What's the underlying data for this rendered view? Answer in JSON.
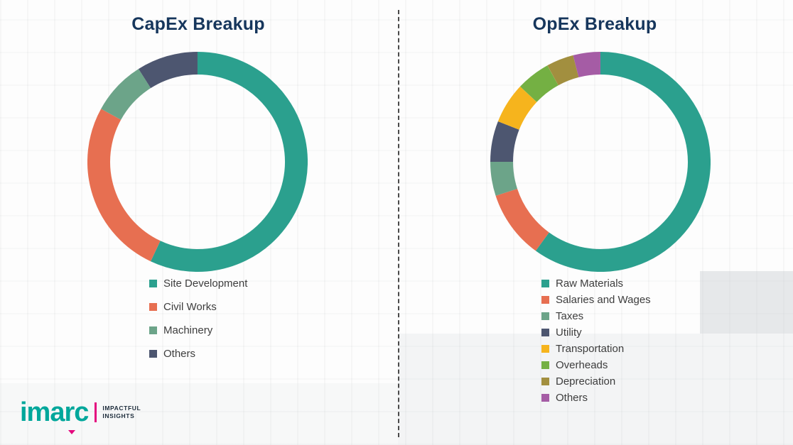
{
  "chart_data": [
    {
      "type": "pie",
      "subtype": "donut",
      "title": "CapEx Breakup",
      "labels": [
        "Site Development",
        "Civil Works",
        "Machinery",
        "Others"
      ],
      "values": [
        57,
        26,
        8,
        9
      ],
      "colors": [
        "#2BA08E",
        "#E76F51",
        "#6CA489",
        "#4D5670"
      ],
      "start_angle_deg": 0,
      "direction": "clockwise",
      "legend_position": "bottom"
    },
    {
      "type": "pie",
      "subtype": "donut",
      "title": "OpEx Breakup",
      "labels": [
        "Raw Materials",
        "Salaries and Wages",
        "Taxes",
        "Utility",
        "Transportation",
        "Overheads",
        "Depreciation",
        "Others"
      ],
      "values": [
        60,
        10,
        5,
        6,
        6,
        5,
        4,
        4
      ],
      "colors": [
        "#2BA08E",
        "#E76F51",
        "#6CA489",
        "#4D5670",
        "#F6B41D",
        "#74B043",
        "#A28F3F",
        "#A55CA5"
      ],
      "start_angle_deg": 0,
      "direction": "clockwise",
      "legend_position": "bottom"
    }
  ],
  "logo": {
    "brand": "imarc",
    "tagline": [
      "IMPACTFUL",
      "INSIGHTS"
    ],
    "brand_color": "#00A79B",
    "accent_color": "#E4097E"
  },
  "theme": {
    "title_color": "#16365C",
    "legend_text_color": "#3D3D3D",
    "divider_color": "#4A4A4A",
    "background_color": "#FDFDFD"
  }
}
